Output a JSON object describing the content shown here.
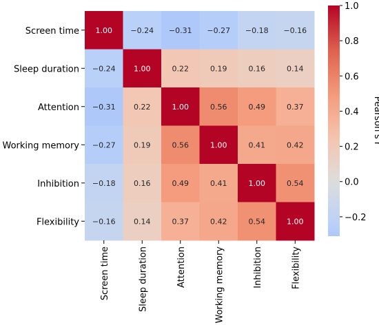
{
  "chart_data": {
    "type": "heatmap",
    "title": "",
    "xlabel": "",
    "ylabel": "",
    "categories": [
      "Screen time",
      "Sleep duration",
      "Attention",
      "Working memory",
      "Inhibition",
      "Flexibility"
    ],
    "values": [
      [
        1.0,
        -0.24,
        -0.31,
        -0.27,
        -0.18,
        -0.16
      ],
      [
        -0.24,
        1.0,
        0.22,
        0.19,
        0.16,
        0.14
      ],
      [
        -0.31,
        0.22,
        1.0,
        0.56,
        0.49,
        0.37
      ],
      [
        -0.27,
        0.19,
        0.56,
        1.0,
        0.41,
        0.42
      ],
      [
        -0.18,
        0.16,
        0.49,
        0.41,
        1.0,
        0.54
      ],
      [
        -0.16,
        0.14,
        0.37,
        0.42,
        0.54,
        1.0
      ]
    ],
    "value_labels": [
      [
        "1.00",
        "−0.24",
        "−0.31",
        "−0.27",
        "−0.18",
        "−0.16"
      ],
      [
        "−0.24",
        "1.00",
        "0.22",
        "0.19",
        "0.16",
        "0.14"
      ],
      [
        "−0.31",
        "0.22",
        "1.00",
        "0.56",
        "0.49",
        "0.37"
      ],
      [
        "−0.27",
        "0.19",
        "0.56",
        "1.00",
        "0.41",
        "0.42"
      ],
      [
        "−0.18",
        "0.16",
        "0.49",
        "0.41",
        "1.00",
        "0.54"
      ],
      [
        "−0.16",
        "0.14",
        "0.37",
        "0.42",
        "0.54",
        "1.00"
      ]
    ],
    "colorbar": {
      "label": "Pearson's r",
      "range": [
        -0.31,
        1.0
      ],
      "center": 0.0,
      "colormap": "coolwarm",
      "ticks": [
        -0.2,
        0.0,
        0.2,
        0.4,
        0.6,
        0.8,
        1.0
      ],
      "tick_labels": [
        "−0.2",
        "0.0",
        "0.2",
        "0.4",
        "0.6",
        "0.8",
        "1.0"
      ]
    },
    "grid": false
  }
}
